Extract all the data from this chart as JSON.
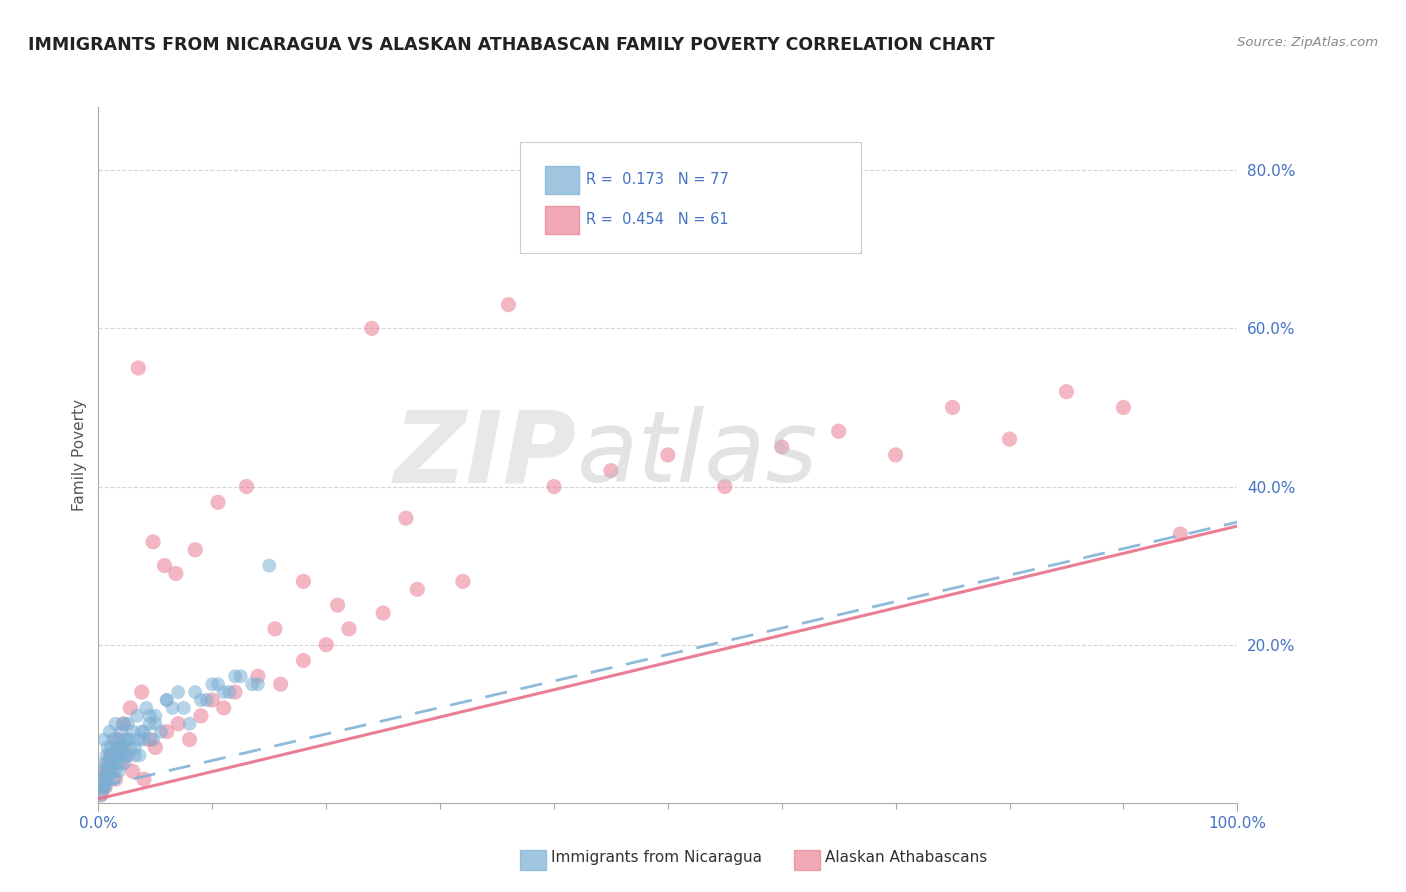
{
  "title": "IMMIGRANTS FROM NICARAGUA VS ALASKAN ATHABASCAN FAMILY POVERTY CORRELATION CHART",
  "source_text": "Source: ZipAtlas.com",
  "ylabel": "Family Poverty",
  "xlim": [
    0.0,
    1.0
  ],
  "ylim": [
    0.0,
    0.88
  ],
  "xtick_positions": [
    0.0,
    1.0
  ],
  "xtick_labels": [
    "0.0%",
    "100.0%"
  ],
  "ytick_values": [
    0.2,
    0.4,
    0.6,
    0.8
  ],
  "ytick_labels": [
    "20.0%",
    "40.0%",
    "60.0%",
    "80.0%"
  ],
  "blue_color": "#7aafd4",
  "pink_color": "#e8708a",
  "blue_scatter_alpha": 0.55,
  "pink_scatter_alpha": 0.5,
  "background_color": "#ffffff",
  "grid_color": "#cccccc",
  "title_color": "#222222",
  "tick_color": "#4472c4",
  "source_color": "#888888",
  "blue_scatter_x": [
    0.002,
    0.003,
    0.004,
    0.005,
    0.005,
    0.006,
    0.007,
    0.008,
    0.008,
    0.009,
    0.01,
    0.01,
    0.011,
    0.012,
    0.013,
    0.014,
    0.015,
    0.015,
    0.016,
    0.017,
    0.018,
    0.019,
    0.02,
    0.021,
    0.022,
    0.023,
    0.024,
    0.025,
    0.026,
    0.028,
    0.03,
    0.032,
    0.034,
    0.036,
    0.038,
    0.04,
    0.042,
    0.045,
    0.048,
    0.05,
    0.055,
    0.06,
    0.065,
    0.07,
    0.08,
    0.09,
    0.1,
    0.11,
    0.12,
    0.14,
    0.003,
    0.004,
    0.006,
    0.008,
    0.01,
    0.012,
    0.014,
    0.016,
    0.018,
    0.02,
    0.022,
    0.025,
    0.028,
    0.032,
    0.036,
    0.04,
    0.045,
    0.05,
    0.06,
    0.075,
    0.085,
    0.095,
    0.105,
    0.115,
    0.125,
    0.135,
    0.15
  ],
  "blue_scatter_y": [
    0.03,
    0.04,
    0.02,
    0.05,
    0.08,
    0.03,
    0.06,
    0.04,
    0.07,
    0.05,
    0.06,
    0.09,
    0.07,
    0.05,
    0.08,
    0.04,
    0.06,
    0.1,
    0.07,
    0.05,
    0.08,
    0.06,
    0.09,
    0.07,
    0.1,
    0.05,
    0.08,
    0.06,
    0.1,
    0.08,
    0.09,
    0.07,
    0.11,
    0.06,
    0.09,
    0.08,
    0.12,
    0.1,
    0.08,
    0.11,
    0.09,
    0.13,
    0.12,
    0.14,
    0.1,
    0.13,
    0.15,
    0.14,
    0.16,
    0.15,
    0.01,
    0.02,
    0.02,
    0.03,
    0.04,
    0.05,
    0.03,
    0.06,
    0.04,
    0.07,
    0.06,
    0.08,
    0.07,
    0.06,
    0.08,
    0.09,
    0.11,
    0.1,
    0.13,
    0.12,
    0.14,
    0.13,
    0.15,
    0.14,
    0.16,
    0.15,
    0.3
  ],
  "pink_scatter_x": [
    0.002,
    0.004,
    0.006,
    0.008,
    0.01,
    0.012,
    0.015,
    0.018,
    0.02,
    0.025,
    0.03,
    0.035,
    0.04,
    0.045,
    0.05,
    0.06,
    0.07,
    0.08,
    0.09,
    0.1,
    0.11,
    0.12,
    0.14,
    0.16,
    0.18,
    0.2,
    0.22,
    0.25,
    0.28,
    0.32,
    0.36,
    0.4,
    0.45,
    0.5,
    0.55,
    0.6,
    0.65,
    0.7,
    0.75,
    0.8,
    0.85,
    0.9,
    0.95,
    0.003,
    0.007,
    0.011,
    0.016,
    0.022,
    0.028,
    0.038,
    0.048,
    0.058,
    0.068,
    0.085,
    0.105,
    0.13,
    0.155,
    0.18,
    0.21,
    0.24,
    0.27
  ],
  "pink_scatter_y": [
    0.01,
    0.03,
    0.02,
    0.05,
    0.04,
    0.06,
    0.03,
    0.07,
    0.05,
    0.06,
    0.04,
    0.55,
    0.03,
    0.08,
    0.07,
    0.09,
    0.1,
    0.08,
    0.11,
    0.13,
    0.12,
    0.14,
    0.16,
    0.15,
    0.18,
    0.2,
    0.22,
    0.24,
    0.27,
    0.28,
    0.63,
    0.4,
    0.42,
    0.44,
    0.4,
    0.45,
    0.47,
    0.44,
    0.5,
    0.46,
    0.52,
    0.5,
    0.34,
    0.02,
    0.04,
    0.06,
    0.08,
    0.1,
    0.12,
    0.14,
    0.33,
    0.3,
    0.29,
    0.32,
    0.38,
    0.4,
    0.22,
    0.28,
    0.25,
    0.6,
    0.36
  ],
  "blue_line_x": [
    0.0,
    1.0
  ],
  "blue_line_y": [
    0.02,
    0.355
  ],
  "pink_line_x": [
    0.0,
    1.0
  ],
  "pink_line_y": [
    0.005,
    0.35
  ],
  "legend_blue_label": "R =  0.173   N = 77",
  "legend_pink_label": "R =  0.454   N = 61",
  "bottom_legend_blue": "Immigrants from Nicaragua",
  "bottom_legend_pink": "Alaskan Athabascans"
}
